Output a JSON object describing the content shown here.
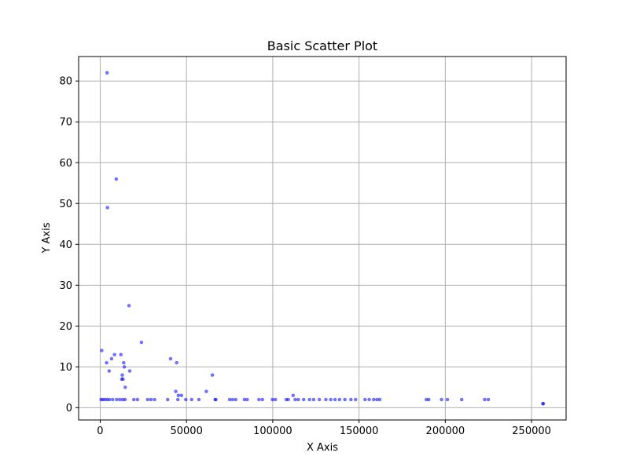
{
  "chart_data": {
    "type": "scatter",
    "title": "Basic Scatter Plot",
    "xlabel": "X Axis",
    "ylabel": "Y Axis",
    "xlim": [
      -12500,
      270000
    ],
    "ylim": [
      -3,
      86
    ],
    "xticks": [
      0,
      50000,
      100000,
      150000,
      200000,
      250000
    ],
    "yticks": [
      0,
      10,
      20,
      30,
      40,
      50,
      60,
      70,
      80
    ],
    "grid": true,
    "point_color": "#0000ff",
    "series": [
      {
        "points": [
          [
            4000,
            82
          ],
          [
            9300,
            56
          ],
          [
            4200,
            49
          ],
          [
            16700,
            25
          ],
          [
            23900,
            16
          ],
          [
            900,
            14
          ],
          [
            8300,
            13
          ],
          [
            12000,
            13
          ],
          [
            6600,
            12
          ],
          [
            40800,
            12
          ],
          [
            3700,
            11
          ],
          [
            13600,
            11
          ],
          [
            44300,
            11
          ],
          [
            14000,
            10
          ],
          [
            5200,
            9
          ],
          [
            17100,
            9
          ],
          [
            12800,
            8
          ],
          [
            65000,
            8
          ],
          [
            12500,
            7
          ],
          [
            13200,
            7
          ],
          [
            14500,
            5
          ],
          [
            43800,
            4
          ],
          [
            61500,
            4
          ],
          [
            45300,
            3
          ],
          [
            47100,
            3
          ],
          [
            111800,
            3
          ],
          [
            500,
            2
          ],
          [
            1500,
            2
          ],
          [
            2700,
            2
          ],
          [
            4000,
            2
          ],
          [
            5300,
            2
          ],
          [
            7200,
            2
          ],
          [
            9500,
            2
          ],
          [
            11300,
            2
          ],
          [
            13000,
            2
          ],
          [
            14400,
            2
          ],
          [
            19500,
            2
          ],
          [
            21600,
            2
          ],
          [
            27500,
            2
          ],
          [
            29400,
            2
          ],
          [
            31500,
            2
          ],
          [
            39100,
            2
          ],
          [
            45000,
            2
          ],
          [
            49600,
            2
          ],
          [
            53000,
            2
          ],
          [
            57200,
            2
          ],
          [
            66600,
            2
          ],
          [
            67000,
            2
          ],
          [
            75000,
            2
          ],
          [
            76700,
            2
          ],
          [
            78500,
            2
          ],
          [
            83600,
            2
          ],
          [
            85200,
            2
          ],
          [
            92000,
            2
          ],
          [
            94000,
            2
          ],
          [
            99800,
            2
          ],
          [
            101500,
            2
          ],
          [
            107800,
            2
          ],
          [
            109000,
            2
          ],
          [
            113000,
            2
          ],
          [
            114800,
            2
          ],
          [
            117900,
            2
          ],
          [
            121300,
            2
          ],
          [
            123700,
            2
          ],
          [
            127000,
            2
          ],
          [
            130800,
            2
          ],
          [
            133600,
            2
          ],
          [
            136100,
            2
          ],
          [
            138700,
            2
          ],
          [
            141800,
            2
          ],
          [
            145300,
            2
          ],
          [
            148000,
            2
          ],
          [
            153500,
            2
          ],
          [
            155900,
            2
          ],
          [
            158500,
            2
          ],
          [
            160400,
            2
          ],
          [
            162000,
            2
          ],
          [
            189000,
            2
          ],
          [
            190400,
            2
          ],
          [
            197800,
            2
          ],
          [
            201200,
            2
          ],
          [
            209500,
            2
          ],
          [
            222800,
            2
          ],
          [
            224900,
            2
          ],
          [
            256500,
            1
          ],
          [
            256800,
            1
          ]
        ]
      }
    ]
  }
}
